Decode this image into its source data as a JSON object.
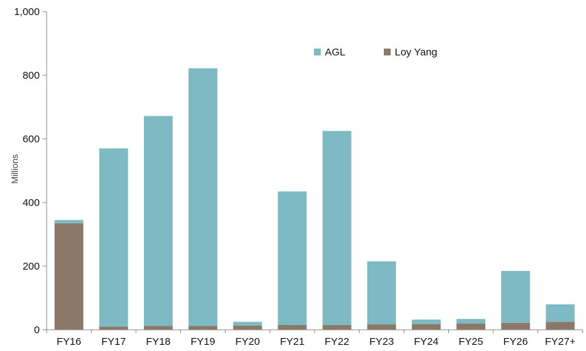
{
  "chart_data": {
    "type": "bar",
    "stacked": true,
    "categories": [
      "FY16",
      "FY17",
      "FY18",
      "FY19",
      "FY20",
      "FY21",
      "FY22",
      "FY23",
      "FY24",
      "FY25",
      "FY26",
      "FY27+"
    ],
    "series": [
      {
        "name": "Loy Yang",
        "color": "#8B7866",
        "values": [
          335,
          10,
          12,
          12,
          13,
          15,
          15,
          17,
          18,
          20,
          22,
          25
        ]
      },
      {
        "name": "AGL",
        "color": "#7DBAC4",
        "values": [
          10,
          560,
          660,
          810,
          12,
          420,
          610,
          198,
          14,
          14,
          163,
          55
        ]
      }
    ],
    "title": "",
    "xlabel": "",
    "ylabel": "Millions",
    "ylim": [
      0,
      1000
    ],
    "yticks": [
      0,
      200,
      400,
      600,
      800,
      1000
    ],
    "ytick_labels": [
      "0",
      "200",
      "400",
      "600",
      "800",
      "1,000"
    ],
    "grid": false,
    "legend_position": "top-right"
  }
}
